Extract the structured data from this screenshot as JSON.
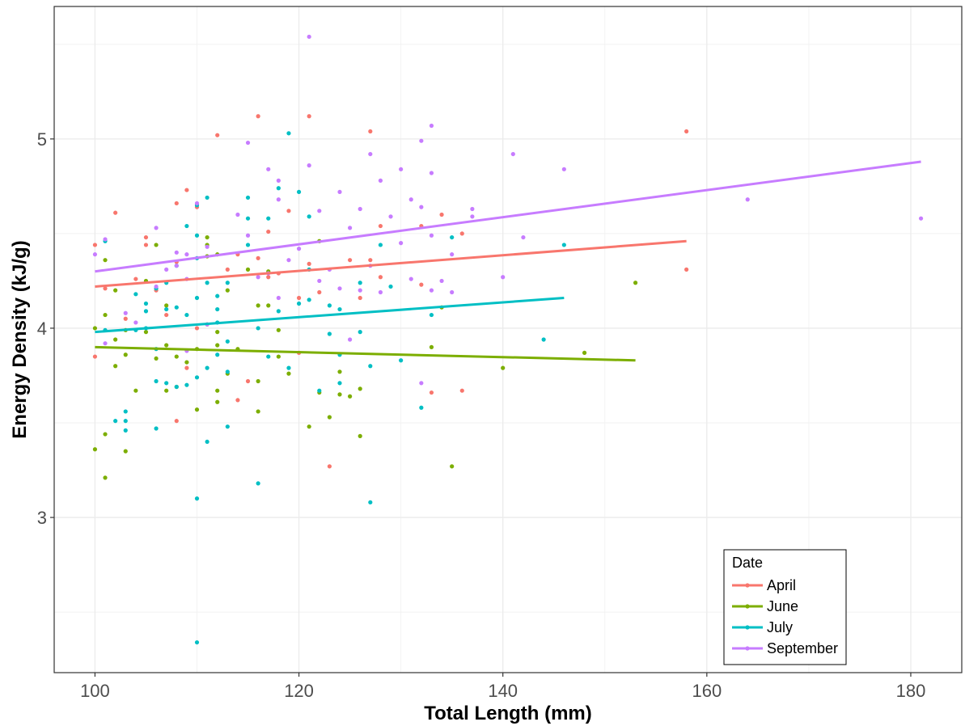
{
  "chart_data": {
    "type": "scatter",
    "xlabel": "Total Length (mm)",
    "ylabel": "Energy Density (kJ/g)",
    "xlim": [
      96,
      185
    ],
    "ylim": [
      2.18,
      5.7
    ],
    "x_ticks": [
      100,
      120,
      140,
      160,
      180
    ],
    "y_ticks": [
      3,
      4,
      5
    ],
    "grid": true,
    "legend": {
      "title": "Date",
      "placement": "bottom-right"
    },
    "series": [
      {
        "name": "April",
        "color": "#F8766D",
        "trend": [
          [
            100,
            4.22
          ],
          [
            158,
            4.46
          ]
        ],
        "points": [
          [
            100,
            4.44
          ],
          [
            100,
            3.85
          ],
          [
            101,
            4.21
          ],
          [
            102,
            4.61
          ],
          [
            103,
            4.05
          ],
          [
            104,
            4.26
          ],
          [
            105,
            4.48
          ],
          [
            105,
            4.44
          ],
          [
            106,
            4.2
          ],
          [
            107,
            4.07
          ],
          [
            108,
            4.66
          ],
          [
            108,
            4.35
          ],
          [
            108,
            3.51
          ],
          [
            109,
            4.73
          ],
          [
            109,
            3.79
          ],
          [
            110,
            4.64
          ],
          [
            110,
            4.0
          ],
          [
            112,
            5.02
          ],
          [
            113,
            4.31
          ],
          [
            114,
            4.39
          ],
          [
            114,
            3.62
          ],
          [
            115,
            3.72
          ],
          [
            116,
            5.12
          ],
          [
            116,
            4.37
          ],
          [
            117,
            4.51
          ],
          [
            117,
            4.27
          ],
          [
            118,
            4.29
          ],
          [
            119,
            4.62
          ],
          [
            120,
            4.16
          ],
          [
            120,
            3.87
          ],
          [
            121,
            5.12
          ],
          [
            121,
            4.34
          ],
          [
            122,
            4.19
          ],
          [
            123,
            3.27
          ],
          [
            125,
            4.36
          ],
          [
            126,
            4.16
          ],
          [
            127,
            5.04
          ],
          [
            127,
            4.36
          ],
          [
            128,
            4.54
          ],
          [
            128,
            4.27
          ],
          [
            132,
            4.54
          ],
          [
            132,
            4.23
          ],
          [
            133,
            3.66
          ],
          [
            134,
            4.6
          ],
          [
            136,
            4.5
          ],
          [
            136,
            3.67
          ],
          [
            158,
            5.04
          ],
          [
            158,
            4.31
          ]
        ]
      },
      {
        "name": "June",
        "color": "#7CAE00",
        "trend": [
          [
            100,
            3.9
          ],
          [
            153,
            3.83
          ]
        ],
        "points": [
          [
            100,
            4.0
          ],
          [
            100,
            3.36
          ],
          [
            101,
            4.36
          ],
          [
            101,
            4.07
          ],
          [
            101,
            3.44
          ],
          [
            101,
            3.21
          ],
          [
            102,
            4.2
          ],
          [
            102,
            3.94
          ],
          [
            102,
            3.8
          ],
          [
            103,
            3.99
          ],
          [
            103,
            3.86
          ],
          [
            103,
            3.35
          ],
          [
            104,
            3.67
          ],
          [
            105,
            4.25
          ],
          [
            105,
            3.98
          ],
          [
            106,
            4.44
          ],
          [
            106,
            3.84
          ],
          [
            107,
            4.12
          ],
          [
            107,
            3.91
          ],
          [
            107,
            3.67
          ],
          [
            108,
            3.85
          ],
          [
            108,
            3.69
          ],
          [
            109,
            3.82
          ],
          [
            110,
            3.89
          ],
          [
            110,
            3.57
          ],
          [
            111,
            4.48
          ],
          [
            111,
            4.44
          ],
          [
            111,
            4.38
          ],
          [
            111,
            4.02
          ],
          [
            112,
            4.39
          ],
          [
            112,
            3.98
          ],
          [
            112,
            3.91
          ],
          [
            112,
            3.67
          ],
          [
            112,
            3.61
          ],
          [
            113,
            4.2
          ],
          [
            113,
            3.76
          ],
          [
            114,
            3.89
          ],
          [
            115,
            4.31
          ],
          [
            116,
            4.12
          ],
          [
            116,
            3.72
          ],
          [
            116,
            3.56
          ],
          [
            117,
            4.3
          ],
          [
            117,
            4.12
          ],
          [
            118,
            3.99
          ],
          [
            118,
            3.85
          ],
          [
            119,
            3.76
          ],
          [
            121,
            3.48
          ],
          [
            122,
            4.46
          ],
          [
            122,
            3.66
          ],
          [
            123,
            3.53
          ],
          [
            124,
            3.77
          ],
          [
            124,
            3.65
          ],
          [
            125,
            3.64
          ],
          [
            126,
            3.43
          ],
          [
            126,
            3.68
          ],
          [
            133,
            3.9
          ],
          [
            134,
            4.11
          ],
          [
            135,
            3.27
          ],
          [
            140,
            3.79
          ],
          [
            148,
            3.87
          ],
          [
            153,
            4.24
          ]
        ]
      },
      {
        "name": "July",
        "color": "#00BFC4",
        "trend": [
          [
            100,
            3.98
          ],
          [
            146,
            4.16
          ]
        ],
        "points": [
          [
            101,
            4.46
          ],
          [
            101,
            3.99
          ],
          [
            102,
            3.51
          ],
          [
            103,
            3.56
          ],
          [
            103,
            3.51
          ],
          [
            103,
            3.46
          ],
          [
            104,
            4.18
          ],
          [
            104,
            3.99
          ],
          [
            105,
            4.13
          ],
          [
            105,
            4.09
          ],
          [
            105,
            4.0
          ],
          [
            106,
            4.21
          ],
          [
            106,
            3.89
          ],
          [
            106,
            3.72
          ],
          [
            106,
            3.47
          ],
          [
            107,
            4.24
          ],
          [
            107,
            4.1
          ],
          [
            107,
            3.71
          ],
          [
            108,
            4.33
          ],
          [
            108,
            4.11
          ],
          [
            108,
            3.69
          ],
          [
            109,
            4.54
          ],
          [
            109,
            4.07
          ],
          [
            109,
            3.7
          ],
          [
            110,
            4.65
          ],
          [
            110,
            4.49
          ],
          [
            110,
            4.37
          ],
          [
            110,
            4.16
          ],
          [
            110,
            3.74
          ],
          [
            110,
            3.1
          ],
          [
            110,
            2.34
          ],
          [
            111,
            4.69
          ],
          [
            111,
            4.24
          ],
          [
            111,
            3.79
          ],
          [
            111,
            3.4
          ],
          [
            112,
            4.17
          ],
          [
            112,
            4.1
          ],
          [
            112,
            4.03
          ],
          [
            112,
            3.86
          ],
          [
            113,
            4.24
          ],
          [
            113,
            3.93
          ],
          [
            113,
            3.77
          ],
          [
            113,
            3.48
          ],
          [
            115,
            4.69
          ],
          [
            115,
            4.58
          ],
          [
            115,
            4.44
          ],
          [
            116,
            4.0
          ],
          [
            116,
            3.18
          ],
          [
            117,
            4.58
          ],
          [
            117,
            3.85
          ],
          [
            118,
            4.74
          ],
          [
            118,
            4.09
          ],
          [
            119,
            5.03
          ],
          [
            119,
            3.79
          ],
          [
            120,
            4.72
          ],
          [
            120,
            4.13
          ],
          [
            121,
            4.59
          ],
          [
            121,
            4.31
          ],
          [
            121,
            4.15
          ],
          [
            122,
            3.67
          ],
          [
            123,
            4.12
          ],
          [
            123,
            3.97
          ],
          [
            124,
            4.1
          ],
          [
            124,
            3.71
          ],
          [
            124,
            3.86
          ],
          [
            126,
            4.24
          ],
          [
            126,
            3.98
          ],
          [
            127,
            3.8
          ],
          [
            127,
            3.08
          ],
          [
            128,
            4.44
          ],
          [
            129,
            4.22
          ],
          [
            130,
            3.83
          ],
          [
            132,
            3.58
          ],
          [
            133,
            4.07
          ],
          [
            135,
            4.48
          ],
          [
            144,
            3.94
          ],
          [
            146,
            4.44
          ]
        ]
      },
      {
        "name": "September",
        "color": "#C77CFF",
        "trend": [
          [
            100,
            4.3
          ],
          [
            181,
            4.88
          ]
        ],
        "points": [
          [
            100,
            4.39
          ],
          [
            101,
            4.47
          ],
          [
            101,
            3.92
          ],
          [
            103,
            4.08
          ],
          [
            104,
            4.03
          ],
          [
            106,
            4.53
          ],
          [
            106,
            4.22
          ],
          [
            107,
            4.31
          ],
          [
            108,
            4.4
          ],
          [
            108,
            4.33
          ],
          [
            109,
            4.39
          ],
          [
            109,
            4.26
          ],
          [
            109,
            3.88
          ],
          [
            110,
            4.66
          ],
          [
            111,
            4.43
          ],
          [
            111,
            4.02
          ],
          [
            114,
            4.6
          ],
          [
            115,
            4.98
          ],
          [
            115,
            4.49
          ],
          [
            116,
            4.27
          ],
          [
            117,
            4.84
          ],
          [
            117,
            4.29
          ],
          [
            118,
            4.78
          ],
          [
            118,
            4.68
          ],
          [
            118,
            4.16
          ],
          [
            119,
            4.36
          ],
          [
            120,
            4.42
          ],
          [
            121,
            5.54
          ],
          [
            121,
            4.86
          ],
          [
            122,
            4.62
          ],
          [
            122,
            4.25
          ],
          [
            123,
            4.31
          ],
          [
            124,
            4.72
          ],
          [
            124,
            4.21
          ],
          [
            125,
            4.53
          ],
          [
            125,
            3.94
          ],
          [
            126,
            4.63
          ],
          [
            126,
            4.2
          ],
          [
            127,
            4.92
          ],
          [
            127,
            4.33
          ],
          [
            128,
            4.78
          ],
          [
            128,
            4.19
          ],
          [
            129,
            4.59
          ],
          [
            130,
            4.84
          ],
          [
            130,
            4.45
          ],
          [
            131,
            4.68
          ],
          [
            131,
            4.26
          ],
          [
            132,
            4.99
          ],
          [
            132,
            4.64
          ],
          [
            132,
            3.71
          ],
          [
            133,
            5.07
          ],
          [
            133,
            4.82
          ],
          [
            133,
            4.49
          ],
          [
            133,
            4.2
          ],
          [
            134,
            4.25
          ],
          [
            135,
            4.39
          ],
          [
            135,
            4.19
          ],
          [
            137,
            4.63
          ],
          [
            137,
            4.59
          ],
          [
            140,
            4.27
          ],
          [
            141,
            4.92
          ],
          [
            142,
            4.48
          ],
          [
            146,
            4.84
          ],
          [
            164,
            4.68
          ],
          [
            181,
            4.58
          ]
        ]
      }
    ]
  }
}
